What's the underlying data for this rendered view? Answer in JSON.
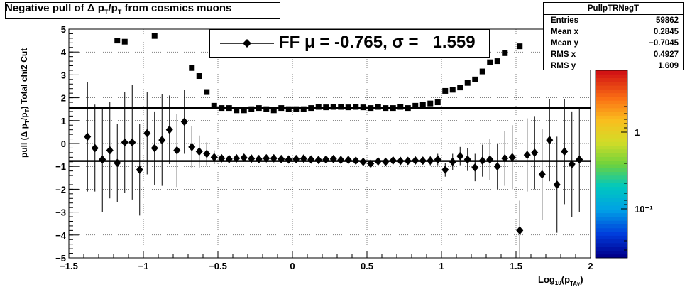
{
  "title_text": "Negative pull of Δ p_T/p_T from cosmics muons",
  "stats": {
    "name": "PullpTRNegT",
    "rows": [
      {
        "label": "Entries",
        "value": "59862"
      },
      {
        "label": "Mean x",
        "value": "0.2845"
      },
      {
        "label": "Mean y",
        "value": "−0.7045"
      },
      {
        "label": "RMS x",
        "value": "0.4927"
      },
      {
        "label": "RMS y",
        "value": "1.609"
      }
    ]
  },
  "legend_text": "FF μ = -0.765, σ =   1.559",
  "chart_data": {
    "type": "heatmap",
    "title": "Negative pull of Δ p_T/p_T from cosmics muons",
    "xlabel": "Log10(pTAv)",
    "ylabel": "pull (Δ pT/pT)  Total chi2 Cut",
    "xlim": [
      -1.5,
      2
    ],
    "ylim": [
      -5,
      5
    ],
    "x_ticks": [
      "−1.5",
      "−1",
      "−0.5",
      "0",
      "0.5",
      "1",
      "1.5",
      "2"
    ],
    "y_ticks": [
      "−5",
      "−4",
      "−3",
      "−2",
      "−1",
      "0",
      "1",
      "2",
      "3",
      "4",
      "5"
    ],
    "z_ticks": [
      "1",
      "10⁻¹"
    ],
    "z_scale": "log",
    "grid": true,
    "hlines": [
      -0.765,
      1.559
    ],
    "colors": {
      "mean": "#000000",
      "rms": "#000000",
      "fit_lines": "#000000"
    },
    "series": [
      {
        "marker": "diamond",
        "x": [
          -1.375,
          -1.325,
          -1.275,
          -1.225,
          -1.175,
          -1.125,
          -1.075,
          -1.025,
          -0.975,
          -0.925,
          -0.875,
          -0.825,
          -0.775,
          -0.725,
          -0.675,
          -0.625,
          -0.575,
          -0.525,
          -0.475,
          -0.425,
          -0.375,
          -0.325,
          -0.275,
          -0.225,
          -0.175,
          -0.125,
          -0.075,
          -0.025,
          0.025,
          0.075,
          0.125,
          0.175,
          0.225,
          0.275,
          0.325,
          0.375,
          0.425,
          0.475,
          0.525,
          0.575,
          0.625,
          0.675,
          0.725,
          0.775,
          0.825,
          0.875,
          0.925,
          0.975,
          1.025,
          1.075,
          1.125,
          1.175,
          1.225,
          1.275,
          1.325,
          1.375,
          1.425,
          1.475,
          1.525,
          1.575,
          1.625,
          1.675,
          1.725,
          1.775,
          1.825,
          1.875,
          1.925
        ],
        "y": [
          0.3,
          -0.2,
          -0.7,
          -0.3,
          -0.85,
          0.05,
          0.05,
          -1.15,
          0.45,
          -0.2,
          0.15,
          0.6,
          -0.3,
          0.95,
          -0.15,
          -0.35,
          -0.45,
          -0.6,
          -0.65,
          -0.68,
          -0.65,
          -0.62,
          -0.66,
          -0.68,
          -0.65,
          -0.65,
          -0.68,
          -0.7,
          -0.68,
          -0.66,
          -0.7,
          -0.72,
          -0.7,
          -0.68,
          -0.72,
          -0.72,
          -0.75,
          -0.8,
          -0.88,
          -0.78,
          -0.8,
          -0.74,
          -0.76,
          -0.76,
          -0.74,
          -0.75,
          -0.75,
          -0.7,
          -1.15,
          -0.8,
          -0.55,
          -0.7,
          -1.05,
          -0.75,
          -0.7,
          -1.0,
          -0.65,
          -0.6,
          -3.8,
          -0.5,
          -0.4,
          -1.35,
          0.15,
          -1.8,
          -0.35,
          -0.9,
          -0.7
        ],
        "y_err": [
          2.4,
          1.9,
          2.3,
          2.1,
          1.7,
          2.2,
          2.5,
          2.0,
          1.8,
          1.6,
          2.0,
          1.5,
          1.6,
          1.4,
          0.9,
          0.7,
          0.5,
          0.3,
          0.15,
          0.1,
          0.08,
          0.07,
          0.06,
          0.06,
          0.05,
          0.05,
          0.05,
          0.05,
          0.05,
          0.05,
          0.05,
          0.05,
          0.05,
          0.05,
          0.06,
          0.06,
          0.06,
          0.07,
          0.07,
          0.08,
          0.08,
          0.09,
          0.1,
          0.12,
          0.14,
          0.16,
          0.2,
          0.25,
          0.3,
          0.35,
          0.4,
          0.5,
          0.6,
          0.7,
          0.9,
          1.0,
          1.2,
          1.4,
          1.3,
          1.6,
          1.6,
          2.0,
          1.8,
          2.1,
          2.3,
          2.3,
          2.3
        ]
      },
      {
        "marker": "square",
        "y": [
          null,
          null,
          null,
          null,
          4.5,
          4.45,
          null,
          null,
          null,
          4.7,
          null,
          null,
          null,
          null,
          3.3,
          2.95,
          2.25,
          1.65,
          1.55,
          1.55,
          1.45,
          1.45,
          1.5,
          1.55,
          1.5,
          1.45,
          1.55,
          1.5,
          1.5,
          1.5,
          1.55,
          1.6,
          1.58,
          1.6,
          1.6,
          1.58,
          1.6,
          1.58,
          1.55,
          1.6,
          1.55,
          1.55,
          1.6,
          1.55,
          1.65,
          1.7,
          1.75,
          1.8,
          2.3,
          2.35,
          2.45,
          2.65,
          2.8,
          3.15,
          3.55,
          3.6,
          3.95,
          null,
          4.25,
          null,
          null,
          null,
          null,
          null,
          null,
          null,
          null
        ]
      }
    ]
  }
}
